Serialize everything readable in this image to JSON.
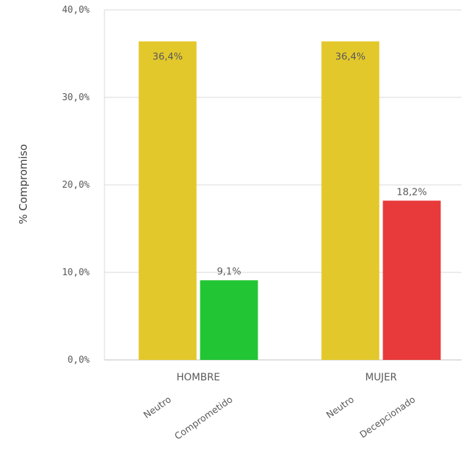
{
  "chart_data": {
    "type": "bar",
    "title": "",
    "xlabel": "",
    "ylabel": "% Compromiso",
    "ylim": [
      0,
      40
    ],
    "yticks": [
      "0,0%",
      "10,0%",
      "20,0%",
      "30,0%",
      "40,0%"
    ],
    "grid": true,
    "groups": [
      {
        "name": "HOMBRE",
        "bars": [
          {
            "label": "Neutro",
            "value": 36.4,
            "value_label": "36,4%",
            "color": "#E3C82C"
          },
          {
            "label": "Comprometido",
            "value": 9.1,
            "value_label": "9,1%",
            "color": "#22C534"
          }
        ]
      },
      {
        "name": "MUJER",
        "bars": [
          {
            "label": "Neutro",
            "value": 36.4,
            "value_label": "36,4%",
            "color": "#E3C82C"
          },
          {
            "label": "Decepcionado",
            "value": 18.2,
            "value_label": "18,2%",
            "color": "#E83A3A"
          }
        ]
      }
    ]
  }
}
